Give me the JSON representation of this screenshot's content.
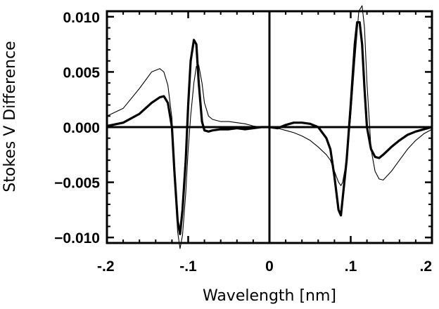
{
  "chart_data": {
    "type": "line",
    "xlabel": "Wavelength [nm]",
    "ylabel": "Stokes V Difference",
    "xlim": [
      -0.2,
      0.2
    ],
    "ylim": [
      -0.0105,
      0.0105
    ],
    "x_ticks": [
      {
        "value": -0.2,
        "label": "-.2"
      },
      {
        "value": -0.1,
        "label": "-.1"
      },
      {
        "value": 0.0,
        "label": "0"
      },
      {
        "value": 0.1,
        "label": ".1"
      },
      {
        "value": 0.2,
        "label": ".2"
      }
    ],
    "y_ticks": [
      {
        "value": 0.01,
        "label": "0.010"
      },
      {
        "value": 0.005,
        "label": "0.005"
      },
      {
        "value": 0.0,
        "label": "0.000"
      },
      {
        "value": -0.005,
        "label": "−0.005"
      },
      {
        "value": -0.01,
        "label": "−0.010"
      }
    ],
    "reference_lines": {
      "horizontal_y": 0.0,
      "vertical_x": 0.0
    },
    "series": [
      {
        "style": "thick",
        "x": [
          -0.2,
          -0.18,
          -0.16,
          -0.145,
          -0.135,
          -0.13,
          -0.125,
          -0.12,
          -0.117,
          -0.113,
          -0.11,
          -0.107,
          -0.103,
          -0.1,
          -0.097,
          -0.093,
          -0.09,
          -0.087,
          -0.083,
          -0.08,
          -0.075,
          -0.07,
          -0.06,
          -0.05,
          -0.04,
          -0.03,
          -0.02,
          -0.01,
          0.0,
          0.01,
          0.02,
          0.03,
          0.04,
          0.05,
          0.06,
          0.07,
          0.075,
          0.08,
          0.085,
          0.088,
          0.09,
          0.095,
          0.1,
          0.105,
          0.108,
          0.111,
          0.114,
          0.117,
          0.12,
          0.125,
          0.13,
          0.135,
          0.14,
          0.15,
          0.16,
          0.17,
          0.18,
          0.19,
          0.2
        ],
        "y": [
          0.0001,
          0.0004,
          0.0012,
          0.0022,
          0.0027,
          0.0028,
          0.0022,
          0.0,
          -0.004,
          -0.0085,
          -0.0097,
          -0.0075,
          -0.003,
          0.002,
          0.006,
          0.0079,
          0.0075,
          0.004,
          0.0005,
          -0.0003,
          -0.0004,
          -0.0003,
          -0.0002,
          -0.0002,
          -0.0001,
          -0.0002,
          -0.0001,
          0.0,
          0.0,
          -0.0001,
          0.0002,
          0.0004,
          0.0004,
          0.0003,
          0.0,
          -0.001,
          -0.002,
          -0.0045,
          -0.0075,
          -0.008,
          -0.0065,
          -0.003,
          0.002,
          0.0075,
          0.0095,
          0.0095,
          0.0075,
          0.0035,
          0.0,
          -0.002,
          -0.0027,
          -0.0028,
          -0.0025,
          -0.0018,
          -0.0012,
          -0.0007,
          -0.0004,
          -0.0002,
          0.0
        ]
      },
      {
        "style": "thin",
        "x": [
          -0.2,
          -0.18,
          -0.16,
          -0.145,
          -0.135,
          -0.13,
          -0.125,
          -0.12,
          -0.117,
          -0.113,
          -0.11,
          -0.107,
          -0.103,
          -0.1,
          -0.097,
          -0.093,
          -0.09,
          -0.087,
          -0.083,
          -0.08,
          -0.075,
          -0.07,
          -0.06,
          -0.05,
          -0.04,
          -0.03,
          -0.02,
          -0.01,
          0.0,
          0.01,
          0.02,
          0.03,
          0.04,
          0.05,
          0.06,
          0.07,
          0.075,
          0.08,
          0.085,
          0.088,
          0.09,
          0.095,
          0.1,
          0.105,
          0.11,
          0.114,
          0.117,
          0.12,
          0.125,
          0.13,
          0.135,
          0.14,
          0.15,
          0.16,
          0.17,
          0.18,
          0.19,
          0.2
        ],
        "y": [
          0.001,
          0.0017,
          0.0035,
          0.005,
          0.0053,
          0.005,
          0.0038,
          0.0008,
          -0.004,
          -0.0095,
          -0.011,
          -0.0098,
          -0.006,
          -0.002,
          0.001,
          0.004,
          0.0055,
          0.0056,
          0.004,
          0.0022,
          0.001,
          0.0007,
          0.0005,
          0.0005,
          0.0004,
          0.0003,
          0.0001,
          0.0,
          0.0,
          -0.0001,
          -0.0003,
          -0.0005,
          -0.0008,
          -0.0012,
          -0.0018,
          -0.0025,
          -0.003,
          -0.004,
          -0.005,
          -0.0053,
          -0.005,
          -0.003,
          0.001,
          0.006,
          0.0105,
          0.011,
          0.009,
          0.004,
          -0.002,
          -0.004,
          -0.0047,
          -0.0048,
          -0.004,
          -0.003,
          -0.002,
          -0.0012,
          -0.0006,
          -0.0002
        ]
      }
    ]
  }
}
